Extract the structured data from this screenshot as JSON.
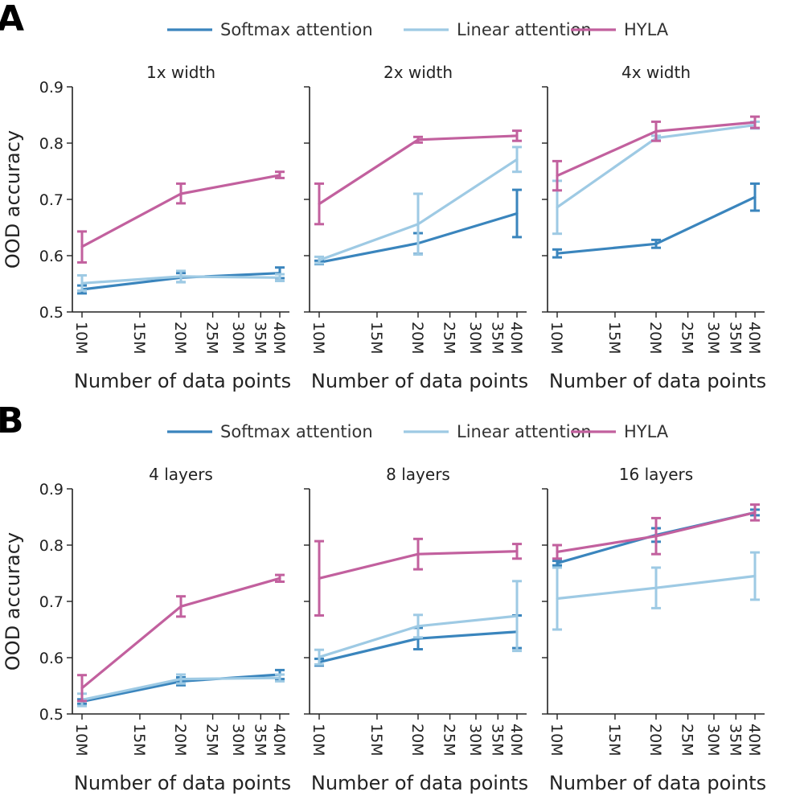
{
  "colors": {
    "softmax": "#3a85bd",
    "linear": "#9ecae4",
    "hyla": "#c2609e"
  },
  "chart_data": [
    {
      "panel": "A",
      "type": "line",
      "legend": [
        {
          "key": "softmax",
          "label": "Softmax attention"
        },
        {
          "key": "linear",
          "label": "Linear attention"
        },
        {
          "key": "hyla",
          "label": "HYLA"
        }
      ],
      "ylabel": "OOD accuracy",
      "xlabel": "Number of data points",
      "xscale": "log",
      "xlim": [
        10,
        40
      ],
      "xticks": [
        {
          "v": 10,
          "label": "10M"
        },
        {
          "v": 15,
          "label": "15M"
        },
        {
          "v": 20,
          "label": "20M"
        },
        {
          "v": 25,
          "label": "25M"
        },
        {
          "v": 30,
          "label": "30M"
        },
        {
          "v": 35,
          "label": "35M"
        },
        {
          "v": 40,
          "label": "40M"
        }
      ],
      "ylim": [
        0.5,
        0.9
      ],
      "yticks": [
        {
          "v": 0.5,
          "label": "0.5"
        },
        {
          "v": 0.6,
          "label": "0.6"
        },
        {
          "v": 0.7,
          "label": "0.7"
        },
        {
          "v": 0.8,
          "label": "0.8"
        },
        {
          "v": 0.9,
          "label": "0.9"
        }
      ],
      "x": [
        10,
        20,
        40
      ],
      "subplots": [
        {
          "title": "1x width",
          "series": [
            {
              "key": "softmax",
              "values": [
                0.54,
                0.561,
                0.569
              ],
              "lower": [
                0.533,
                0.553,
                0.56
              ],
              "upper": [
                0.547,
                0.569,
                0.579
              ]
            },
            {
              "key": "linear",
              "values": [
                0.551,
                0.563,
                0.561
              ],
              "lower": [
                0.538,
                0.553,
                0.555
              ],
              "upper": [
                0.565,
                0.573,
                0.567
              ]
            },
            {
              "key": "hyla",
              "values": [
                0.616,
                0.71,
                0.743
              ],
              "lower": [
                0.588,
                0.693,
                0.738
              ],
              "upper": [
                0.643,
                0.728,
                0.749
              ]
            }
          ]
        },
        {
          "title": "2x width",
          "series": [
            {
              "key": "softmax",
              "values": [
                0.588,
                0.622,
                0.675
              ],
              "lower": [
                0.585,
                0.603,
                0.633
              ],
              "upper": [
                0.591,
                0.64,
                0.717
              ]
            },
            {
              "key": "linear",
              "values": [
                0.592,
                0.656,
                0.771
              ],
              "lower": [
                0.586,
                0.602,
                0.749
              ],
              "upper": [
                0.598,
                0.71,
                0.793
              ]
            },
            {
              "key": "hyla",
              "values": [
                0.692,
                0.806,
                0.813
              ],
              "lower": [
                0.656,
                0.801,
                0.804
              ],
              "upper": [
                0.728,
                0.811,
                0.822
              ]
            }
          ]
        },
        {
          "title": "4x width",
          "series": [
            {
              "key": "softmax",
              "values": [
                0.604,
                0.621,
                0.704
              ],
              "lower": [
                0.597,
                0.614,
                0.68
              ],
              "upper": [
                0.611,
                0.628,
                0.728
              ]
            },
            {
              "key": "linear",
              "values": [
                0.686,
                0.809,
                0.832
              ],
              "lower": [
                0.639,
                0.805,
                0.826
              ],
              "upper": [
                0.733,
                0.813,
                0.838
              ]
            },
            {
              "key": "hyla",
              "values": [
                0.742,
                0.821,
                0.837
              ],
              "lower": [
                0.716,
                0.804,
                0.827
              ],
              "upper": [
                0.768,
                0.838,
                0.847
              ]
            }
          ]
        }
      ]
    },
    {
      "panel": "B",
      "type": "line",
      "legend": [
        {
          "key": "softmax",
          "label": "Softmax attention"
        },
        {
          "key": "linear",
          "label": "Linear attention"
        },
        {
          "key": "hyla",
          "label": "HYLA"
        }
      ],
      "ylabel": "OOD accuracy",
      "xlabel": "Number of data points",
      "xscale": "log",
      "xlim": [
        10,
        40
      ],
      "xticks": [
        {
          "v": 10,
          "label": "10M"
        },
        {
          "v": 15,
          "label": "15M"
        },
        {
          "v": 20,
          "label": "20M"
        },
        {
          "v": 25,
          "label": "25M"
        },
        {
          "v": 30,
          "label": "30M"
        },
        {
          "v": 35,
          "label": "35M"
        },
        {
          "v": 40,
          "label": "40M"
        }
      ],
      "ylim": [
        0.5,
        0.9
      ],
      "yticks": [
        {
          "v": 0.5,
          "label": "0.5"
        },
        {
          "v": 0.6,
          "label": "0.6"
        },
        {
          "v": 0.7,
          "label": "0.7"
        },
        {
          "v": 0.8,
          "label": "0.8"
        },
        {
          "v": 0.9,
          "label": "0.9"
        }
      ],
      "x": [
        10,
        20,
        40
      ],
      "subplots": [
        {
          "title": "4 layers",
          "series": [
            {
              "key": "softmax",
              "values": [
                0.522,
                0.558,
                0.57
              ],
              "lower": [
                0.518,
                0.551,
                0.562
              ],
              "upper": [
                0.526,
                0.565,
                0.578
              ]
            },
            {
              "key": "linear",
              "values": [
                0.525,
                0.562,
                0.564
              ],
              "lower": [
                0.514,
                0.554,
                0.558
              ],
              "upper": [
                0.536,
                0.57,
                0.57
              ]
            },
            {
              "key": "hyla",
              "values": [
                0.546,
                0.691,
                0.741
              ],
              "lower": [
                0.523,
                0.673,
                0.735
              ],
              "upper": [
                0.569,
                0.709,
                0.747
              ]
            }
          ]
        },
        {
          "title": "8 layers",
          "series": [
            {
              "key": "softmax",
              "values": [
                0.592,
                0.634,
                0.646
              ],
              "lower": [
                0.586,
                0.615,
                0.617
              ],
              "upper": [
                0.598,
                0.653,
                0.675
              ]
            },
            {
              "key": "linear",
              "values": [
                0.601,
                0.656,
                0.674
              ],
              "lower": [
                0.588,
                0.636,
                0.612
              ],
              "upper": [
                0.614,
                0.676,
                0.736
              ]
            },
            {
              "key": "hyla",
              "values": [
                0.741,
                0.784,
                0.789
              ],
              "lower": [
                0.675,
                0.757,
                0.776
              ],
              "upper": [
                0.807,
                0.811,
                0.802
              ]
            }
          ]
        },
        {
          "title": "16 layers",
          "series": [
            {
              "key": "softmax",
              "values": [
                0.768,
                0.818,
                0.858
              ],
              "lower": [
                0.764,
                0.806,
                0.853
              ],
              "upper": [
                0.772,
                0.83,
                0.863
              ]
            },
            {
              "key": "linear",
              "values": [
                0.705,
                0.724,
                0.745
              ],
              "lower": [
                0.65,
                0.688,
                0.703
              ],
              "upper": [
                0.76,
                0.76,
                0.787
              ]
            },
            {
              "key": "hyla",
              "values": [
                0.788,
                0.816,
                0.858
              ],
              "lower": [
                0.776,
                0.784,
                0.844
              ],
              "upper": [
                0.8,
                0.848,
                0.872
              ]
            }
          ]
        }
      ]
    }
  ]
}
